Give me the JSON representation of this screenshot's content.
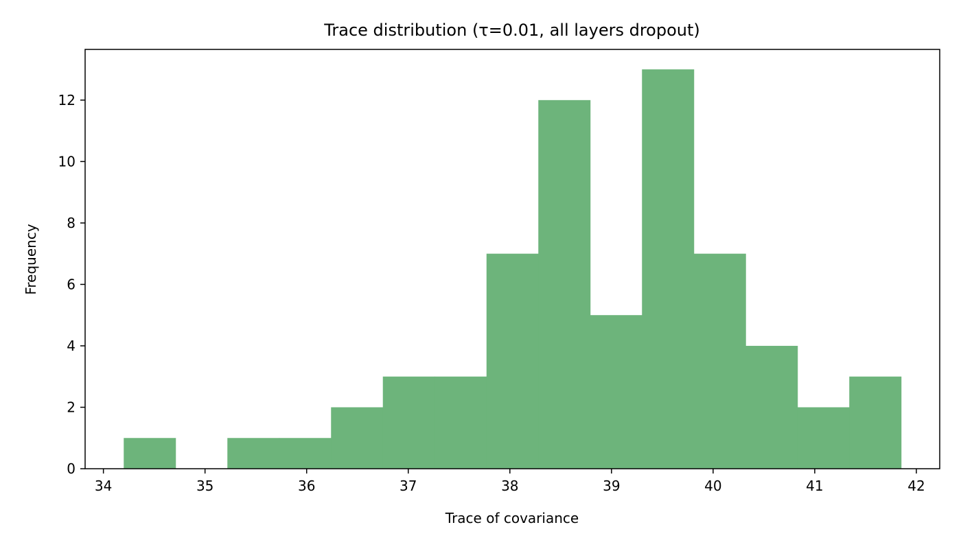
{
  "chart_data": {
    "type": "bar",
    "title": "Trace distribution (τ=0.01, all layers dropout)",
    "xlabel": "Trace of covariance",
    "ylabel": "Frequency",
    "bin_edges": [
      34.2,
      34.71,
      35.22,
      35.73,
      36.24,
      36.75,
      37.26,
      37.77,
      38.28,
      38.79,
      39.3,
      39.81,
      40.32,
      40.83,
      41.34,
      41.85
    ],
    "values": [
      1,
      0,
      1,
      1,
      2,
      3,
      3,
      7,
      12,
      5,
      13,
      7,
      4,
      2,
      3
    ],
    "xlim": [
      33.82,
      42.23
    ],
    "ylim": [
      0,
      13.65
    ],
    "x_ticks": [
      34,
      35,
      36,
      37,
      38,
      39,
      40,
      41,
      42
    ],
    "y_ticks": [
      0,
      2,
      4,
      6,
      8,
      10,
      12
    ],
    "bar_color": "#6db47b",
    "grid": false
  }
}
